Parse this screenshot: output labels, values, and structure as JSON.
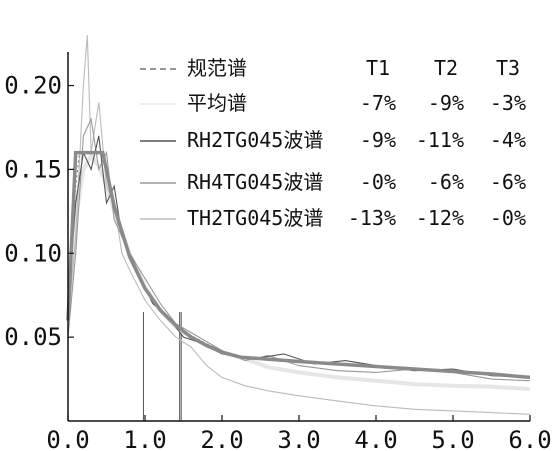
{
  "chart_data": {
    "type": "line",
    "title": "",
    "xlabel": "",
    "ylabel": "",
    "xlim": [
      0,
      6
    ],
    "ylim": [
      0,
      0.22
    ],
    "x_ticks": [
      "0.0",
      "1.0",
      "2.0",
      "3.0",
      "4.0",
      "5.0",
      "6.0"
    ],
    "y_ticks": [
      {
        "value": 0.05,
        "label": "0.05"
      },
      {
        "value": 0.1,
        "label": "0.10"
      },
      {
        "value": 0.15,
        "label": "0.15"
      },
      {
        "value": 0.2,
        "label": "0.20"
      }
    ],
    "legend": {
      "placement": "top-right",
      "columns": [
        "T1",
        "T2",
        "T3"
      ]
    },
    "series": [
      {
        "name": "规范谱",
        "values_row": [
          "",
          "",
          ""
        ],
        "color": "#777777",
        "style": "dashed",
        "points": [
          [
            0,
            0.065
          ],
          [
            0.1,
            0.14
          ],
          [
            0.15,
            0.16
          ],
          [
            0.45,
            0.16
          ],
          [
            0.6,
            0.128
          ],
          [
            0.8,
            0.098
          ],
          [
            1.0,
            0.08
          ],
          [
            1.2,
            0.067
          ],
          [
            1.4,
            0.058
          ],
          [
            1.6,
            0.051
          ],
          [
            1.8,
            0.046
          ],
          [
            2.0,
            0.042
          ],
          [
            2.25,
            0.038
          ],
          [
            2.5,
            0.0375
          ],
          [
            3.0,
            0.0355
          ],
          [
            3.5,
            0.034
          ],
          [
            4.0,
            0.032
          ],
          [
            4.5,
            0.031
          ],
          [
            5.0,
            0.029
          ],
          [
            5.5,
            0.0275
          ],
          [
            6.0,
            0.0255
          ]
        ]
      },
      {
        "name": "平均谱",
        "values_row": [
          "-7%",
          "-9%",
          "-3%"
        ],
        "color": "#e6e6e6",
        "style": "solid",
        "points": [
          [
            0,
            0.06
          ],
          [
            0.1,
            0.12
          ],
          [
            0.2,
            0.15
          ],
          [
            0.3,
            0.158
          ],
          [
            0.4,
            0.152
          ],
          [
            0.5,
            0.14
          ],
          [
            0.6,
            0.125
          ],
          [
            0.8,
            0.1
          ],
          [
            1.0,
            0.08
          ],
          [
            1.2,
            0.066
          ],
          [
            1.4,
            0.056
          ],
          [
            1.6,
            0.05
          ],
          [
            1.8,
            0.045
          ],
          [
            2.0,
            0.041
          ],
          [
            2.3,
            0.037
          ],
          [
            2.6,
            0.032
          ],
          [
            3.0,
            0.029
          ],
          [
            3.5,
            0.026
          ],
          [
            4.0,
            0.024
          ],
          [
            4.5,
            0.022
          ],
          [
            5.0,
            0.021
          ],
          [
            5.5,
            0.0205
          ],
          [
            6.0,
            0.019
          ]
        ]
      },
      {
        "name": "RH2TG045波谱",
        "values_row": [
          "-9%",
          "-11%",
          "-4%"
        ],
        "color": "#555555",
        "style": "solid",
        "points": [
          [
            0,
            0.07
          ],
          [
            0.1,
            0.13
          ],
          [
            0.2,
            0.16
          ],
          [
            0.3,
            0.15
          ],
          [
            0.4,
            0.17
          ],
          [
            0.5,
            0.13
          ],
          [
            0.6,
            0.14
          ],
          [
            0.7,
            0.11
          ],
          [
            0.9,
            0.09
          ],
          [
            1.1,
            0.07
          ],
          [
            1.3,
            0.062
          ],
          [
            1.5,
            0.05
          ],
          [
            1.7,
            0.047
          ],
          [
            2.0,
            0.04
          ],
          [
            2.4,
            0.037
          ],
          [
            2.8,
            0.04
          ],
          [
            3.2,
            0.034
          ],
          [
            3.6,
            0.036
          ],
          [
            4.0,
            0.033
          ],
          [
            4.5,
            0.03
          ],
          [
            5.0,
            0.031
          ],
          [
            5.5,
            0.027
          ],
          [
            6.0,
            0.026
          ]
        ]
      },
      {
        "name": "RH4TG045波谱",
        "values_row": [
          "-0%",
          "-6%",
          "-6%"
        ],
        "color": "#999999",
        "style": "solid",
        "points": [
          [
            0,
            0.05
          ],
          [
            0.1,
            0.1
          ],
          [
            0.2,
            0.17
          ],
          [
            0.3,
            0.18
          ],
          [
            0.4,
            0.15
          ],
          [
            0.5,
            0.16
          ],
          [
            0.6,
            0.12
          ],
          [
            0.8,
            0.1
          ],
          [
            1.0,
            0.085
          ],
          [
            1.2,
            0.07
          ],
          [
            1.4,
            0.058
          ],
          [
            1.7,
            0.05
          ],
          [
            2.0,
            0.042
          ],
          [
            2.3,
            0.036
          ],
          [
            2.6,
            0.039
          ],
          [
            3.0,
            0.033
          ],
          [
            3.5,
            0.03
          ],
          [
            4.0,
            0.029
          ],
          [
            4.5,
            0.031
          ],
          [
            5.0,
            0.029
          ],
          [
            5.5,
            0.025
          ],
          [
            6.0,
            0.024
          ]
        ]
      },
      {
        "name": "TH2TG045波谱",
        "values_row": [
          "-13%",
          "-12%",
          "-0%"
        ],
        "color": "#bbbbbb",
        "style": "solid",
        "points": [
          [
            0,
            0.06
          ],
          [
            0.1,
            0.11
          ],
          [
            0.2,
            0.2
          ],
          [
            0.25,
            0.23
          ],
          [
            0.3,
            0.16
          ],
          [
            0.4,
            0.19
          ],
          [
            0.5,
            0.14
          ],
          [
            0.6,
            0.13
          ],
          [
            0.7,
            0.1
          ],
          [
            0.8,
            0.09
          ],
          [
            1.0,
            0.072
          ],
          [
            1.2,
            0.06
          ],
          [
            1.4,
            0.05
          ],
          [
            1.6,
            0.044
          ],
          [
            1.8,
            0.033
          ],
          [
            2.0,
            0.026
          ],
          [
            2.3,
            0.021
          ],
          [
            2.6,
            0.018
          ],
          [
            3.0,
            0.015
          ],
          [
            3.5,
            0.012
          ],
          [
            4.0,
            0.009
          ],
          [
            4.5,
            0.007
          ],
          [
            5.0,
            0.006
          ],
          [
            5.5,
            0.005
          ],
          [
            6.0,
            0.004
          ]
        ]
      }
    ],
    "target_line": {
      "color": "#8a8a8a",
      "points": [
        [
          0,
          0.06
        ],
        [
          0.1,
          0.16
        ],
        [
          0.45,
          0.16
        ],
        [
          0.6,
          0.128
        ],
        [
          0.8,
          0.098
        ],
        [
          1.0,
          0.079
        ],
        [
          1.2,
          0.066
        ],
        [
          1.4,
          0.057
        ],
        [
          1.6,
          0.05
        ],
        [
          1.8,
          0.045
        ],
        [
          2.0,
          0.041
        ],
        [
          2.25,
          0.038
        ],
        [
          2.5,
          0.0372
        ],
        [
          3.0,
          0.0355
        ],
        [
          3.5,
          0.034
        ],
        [
          4.0,
          0.0325
        ],
        [
          4.5,
          0.031
        ],
        [
          5.0,
          0.0295
        ],
        [
          5.5,
          0.028
        ],
        [
          6.0,
          0.026
        ]
      ]
    },
    "period_markers": [
      0.98,
      1.45,
      1.47
    ]
  }
}
